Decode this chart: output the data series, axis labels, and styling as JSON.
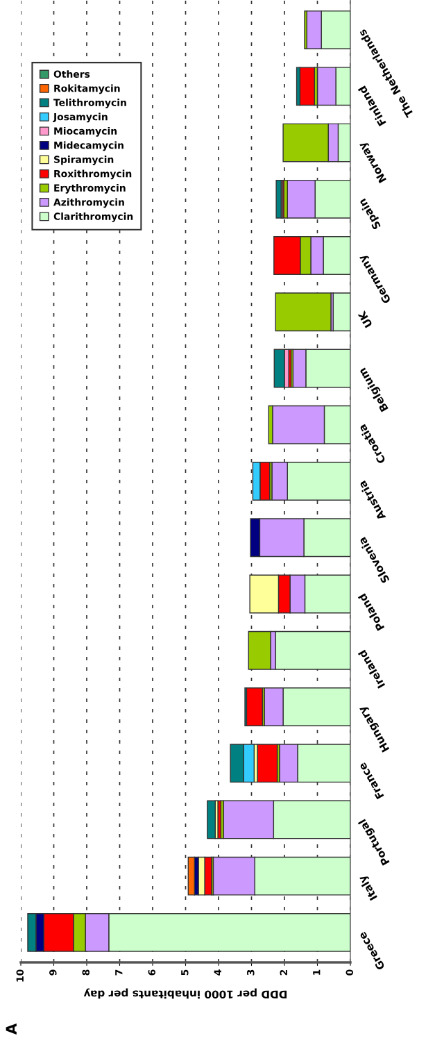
{
  "chart_data": {
    "type": "bar",
    "orientation": "horizontal",
    "stacked": true,
    "xlabel": "DDD per 1000 inhabitants per day",
    "annotations": [
      "A"
    ],
    "categories": [
      "The Netherlands",
      "Finland",
      "Norway",
      "Spain",
      "Germany",
      "UK",
      "Belgium",
      "Croatia",
      "Austria",
      "Slovenia",
      "Poland",
      "Ireland",
      "Hungary",
      "France",
      "Portugal",
      "Italy",
      "Greece"
    ],
    "xlim": [
      10,
      0
    ],
    "xticks": [
      0,
      1,
      2,
      3,
      4,
      5,
      6,
      7,
      8,
      9,
      10
    ],
    "grid": "x",
    "legend": "top left",
    "series": [
      {
        "name": "Clarithromycin",
        "color": "#ccffcc",
        "values": [
          0.88,
          0.44,
          0.37,
          1.07,
          0.82,
          0.52,
          1.35,
          0.79,
          1.91,
          1.41,
          1.38,
          2.27,
          2.04,
          1.6,
          2.33,
          2.9,
          7.33
        ]
      },
      {
        "name": "Azithromycin",
        "color": "#cc99ff",
        "values": [
          0.44,
          0.56,
          0.3,
          0.84,
          0.38,
          0.07,
          0.39,
          1.57,
          0.47,
          1.34,
          0.45,
          0.15,
          0.57,
          0.55,
          1.52,
          1.26,
          0.71
        ]
      },
      {
        "name": "Erythromycin",
        "color": "#99cc00",
        "values": [
          0.07,
          0.09,
          1.37,
          0.11,
          0.32,
          1.68,
          0.06,
          0.12,
          0.07,
          null,
          null,
          0.67,
          0.06,
          0.07,
          0.08,
          0.05,
          0.36
        ]
      },
      {
        "name": "Roxithromycin",
        "color": "#ff0000",
        "values": [
          null,
          0.44,
          null,
          0.04,
          0.8,
          null,
          0.07,
          null,
          0.29,
          null,
          0.35,
          null,
          0.48,
          0.6,
          0.09,
          0.21,
          0.9
        ]
      },
      {
        "name": "Spiramycin",
        "color": "#ffff99",
        "values": [
          null,
          null,
          null,
          null,
          null,
          null,
          null,
          null,
          null,
          null,
          0.87,
          null,
          null,
          0.1,
          0.08,
          0.19,
          null
        ]
      },
      {
        "name": "Midecamycin",
        "color": "#000080",
        "values": [
          null,
          null,
          null,
          null,
          null,
          null,
          null,
          null,
          null,
          0.28,
          null,
          null,
          null,
          null,
          null,
          0.12,
          0.24
        ]
      },
      {
        "name": "Miocamycin",
        "color": "#ff99cc",
        "values": [
          null,
          null,
          null,
          0.04,
          null,
          null,
          0.13,
          null,
          null,
          null,
          null,
          null,
          null,
          null,
          null,
          null,
          null
        ]
      },
      {
        "name": "Josamycin",
        "color": "#33ccff",
        "values": [
          null,
          null,
          null,
          null,
          null,
          null,
          null,
          null,
          0.22,
          null,
          null,
          null,
          null,
          0.32,
          null,
          null,
          null
        ]
      },
      {
        "name": "Telithromycin",
        "color": "#008080",
        "values": [
          null,
          0.1,
          null,
          0.15,
          null,
          null,
          0.31,
          null,
          null,
          null,
          null,
          null,
          0.05,
          0.4,
          0.24,
          null,
          0.25
        ]
      },
      {
        "name": "Rokitamycin",
        "color": "#ff6600",
        "values": [
          null,
          null,
          null,
          null,
          null,
          null,
          null,
          null,
          null,
          null,
          null,
          null,
          null,
          null,
          null,
          0.19,
          null
        ]
      },
      {
        "name": "Others",
        "color": "#339966",
        "values": [
          null,
          null,
          null,
          null,
          null,
          null,
          null,
          null,
          null,
          null,
          null,
          null,
          null,
          null,
          null,
          null,
          null
        ]
      }
    ]
  }
}
